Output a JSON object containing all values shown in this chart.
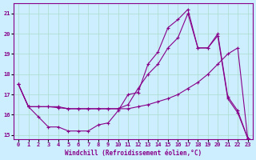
{
  "xlabel": "Windchill (Refroidissement éolien,°C)",
  "ylabel": "",
  "bg_color": "#cceeff",
  "line_color": "#880088",
  "grid_color": "#aaddcc",
  "xlim": [
    -0.5,
    23.5
  ],
  "ylim": [
    14.8,
    21.5
  ],
  "xticks": [
    0,
    1,
    2,
    3,
    4,
    5,
    6,
    7,
    8,
    9,
    10,
    11,
    12,
    13,
    14,
    15,
    16,
    17,
    18,
    19,
    20,
    21,
    22,
    23
  ],
  "yticks": [
    15,
    16,
    17,
    18,
    19,
    20,
    21
  ],
  "curve1_x": [
    0,
    1,
    2,
    3,
    4,
    5,
    6,
    7,
    8,
    9,
    10,
    11,
    12,
    13,
    14,
    15,
    16,
    17,
    18,
    19,
    20,
    21,
    22,
    23
  ],
  "curve1_y": [
    17.5,
    16.4,
    15.9,
    15.4,
    15.4,
    15.2,
    15.2,
    15.2,
    15.5,
    15.6,
    16.2,
    17.0,
    17.1,
    18.5,
    19.1,
    20.3,
    20.7,
    21.2,
    19.3,
    19.3,
    20.0,
    16.9,
    16.2,
    14.85
  ],
  "curve2_x": [
    0,
    1,
    2,
    3,
    4,
    5,
    6,
    7,
    8,
    9,
    10,
    11,
    12,
    13,
    14,
    15,
    16,
    17,
    18,
    19,
    20,
    21,
    22,
    23
  ],
  "curve2_y": [
    17.5,
    16.4,
    16.4,
    16.4,
    16.4,
    16.3,
    16.3,
    16.3,
    16.3,
    16.3,
    16.3,
    16.5,
    17.3,
    18.0,
    18.5,
    19.3,
    19.8,
    21.0,
    19.3,
    19.3,
    19.9,
    16.8,
    16.1,
    14.85
  ],
  "curve3_x": [
    0,
    1,
    2,
    3,
    4,
    5,
    6,
    7,
    8,
    9,
    10,
    11,
    12,
    13,
    14,
    15,
    16,
    17,
    18,
    19,
    20,
    21,
    22,
    23
  ],
  "curve3_y": [
    17.5,
    16.4,
    16.4,
    16.4,
    16.35,
    16.3,
    16.3,
    16.3,
    16.3,
    16.3,
    16.3,
    16.3,
    16.4,
    16.5,
    16.65,
    16.8,
    17.0,
    17.3,
    17.6,
    18.0,
    18.5,
    19.0,
    19.3,
    14.85
  ]
}
